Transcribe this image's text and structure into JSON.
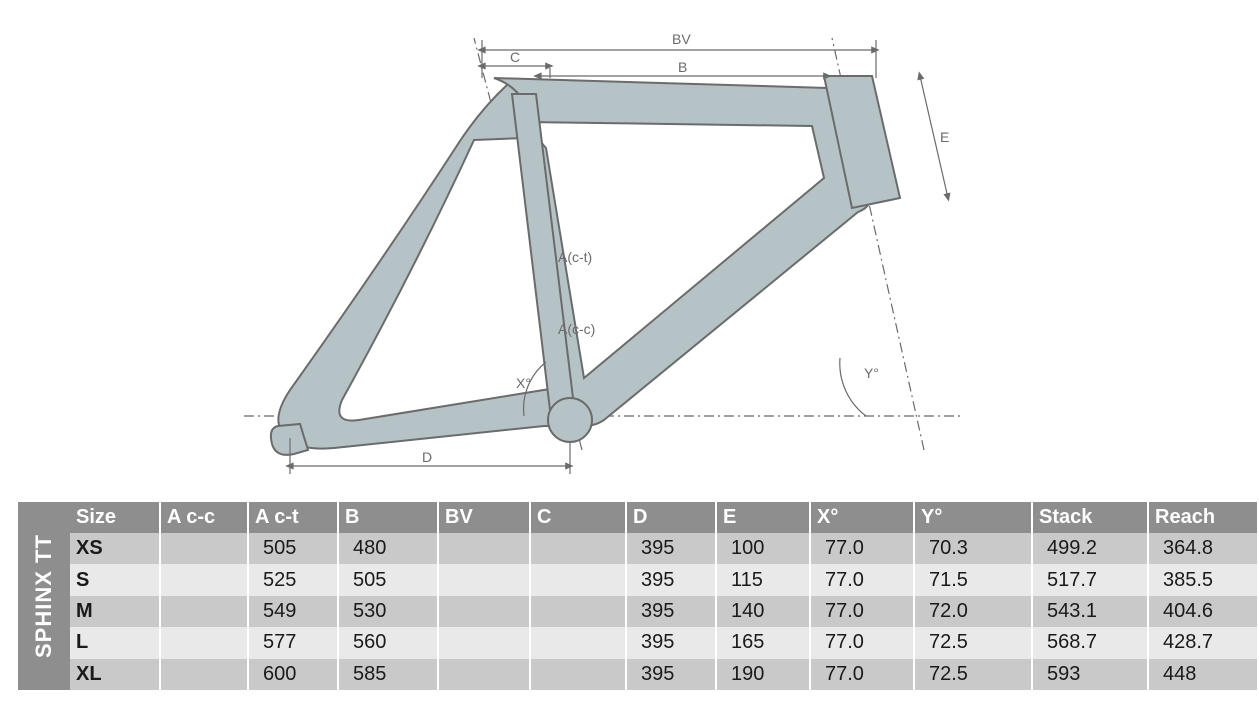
{
  "product_label": "SPHINX TT",
  "diagram": {
    "type": "technical-drawing",
    "frame_fill": "#b6c3c6",
    "frame_stroke": "#6b6b6b",
    "guide_color": "#6b6b6b",
    "background": "#ffffff",
    "labels": {
      "BV": "BV",
      "B": "B",
      "C": "C",
      "D": "D",
      "E": "E",
      "A_ct": "A(c-t)",
      "A_cc": "A(c-c)",
      "X": "X°",
      "Y": "Y°"
    }
  },
  "table": {
    "header_bg": "#8e8e8e",
    "header_fg": "#ffffff",
    "row_even_bg": "#c9c9c9",
    "row_odd_bg": "#e9e9e9",
    "cell_fg": "#1a1a1a",
    "columns": [
      {
        "key": "size",
        "label": "Size",
        "width": 90
      },
      {
        "key": "acc",
        "label": "A c-c",
        "width": 88
      },
      {
        "key": "act",
        "label": "A c-t",
        "width": 90
      },
      {
        "key": "b",
        "label": "B",
        "width": 100
      },
      {
        "key": "bv",
        "label": "BV",
        "width": 92
      },
      {
        "key": "c",
        "label": "C",
        "width": 96
      },
      {
        "key": "d",
        "label": "D",
        "width": 90
      },
      {
        "key": "e",
        "label": "E",
        "width": 94
      },
      {
        "key": "x",
        "label": "X°",
        "width": 104
      },
      {
        "key": "y",
        "label": "Y°",
        "width": 118
      },
      {
        "key": "stack",
        "label": "Stack",
        "width": 116
      },
      {
        "key": "reach",
        "label": "Reach",
        "width": 110
      }
    ],
    "rows": [
      {
        "size": "XS",
        "acc": "",
        "act": "505",
        "b": "480",
        "bv": "",
        "c": "",
        "d": "395",
        "e": "100",
        "x": "77.0",
        "y": "70.3",
        "stack": "499.2",
        "reach": "364.8"
      },
      {
        "size": "S",
        "acc": "",
        "act": "525",
        "b": "505",
        "bv": "",
        "c": "",
        "d": "395",
        "e": "115",
        "x": "77.0",
        "y": "71.5",
        "stack": "517.7",
        "reach": "385.5"
      },
      {
        "size": "M",
        "acc": "",
        "act": "549",
        "b": "530",
        "bv": "",
        "c": "",
        "d": "395",
        "e": "140",
        "x": "77.0",
        "y": "72.0",
        "stack": "543.1",
        "reach": "404.6"
      },
      {
        "size": "L",
        "acc": "",
        "act": "577",
        "b": "560",
        "bv": "",
        "c": "",
        "d": "395",
        "e": "165",
        "x": "77.0",
        "y": "72.5",
        "stack": "568.7",
        "reach": "428.7"
      },
      {
        "size": "XL",
        "acc": "",
        "act": "600",
        "b": "585",
        "bv": "",
        "c": "",
        "d": "395",
        "e": "190",
        "x": "77.0",
        "y": "72.5",
        "stack": "593",
        "reach": "448"
      }
    ]
  }
}
